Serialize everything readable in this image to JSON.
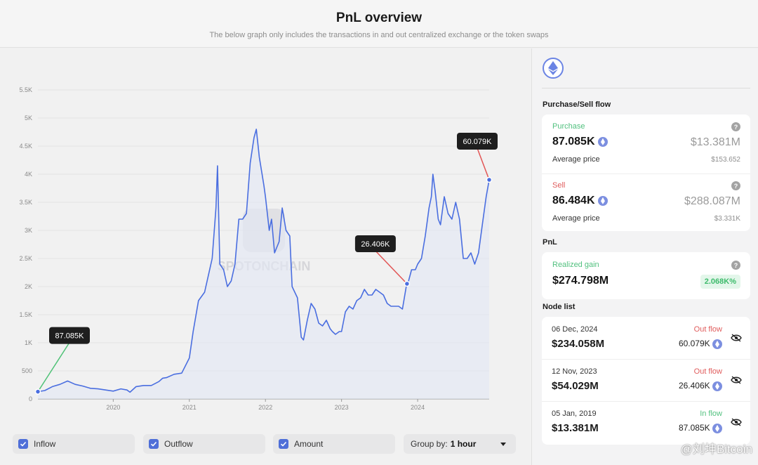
{
  "header": {
    "title": "PnL overview",
    "subtitle": "The below graph only includes the transactions in and out centralized exchange or the token swaps"
  },
  "chart_data": {
    "type": "line",
    "y_ticks": [
      "0",
      "500",
      "1K",
      "1.5K",
      "2K",
      "2.5K",
      "3K",
      "3.5K",
      "4K",
      "4.5K",
      "5K",
      "5.5K"
    ],
    "x_ticks": [
      "2020",
      "2021",
      "2022",
      "2023",
      "2024"
    ],
    "ylim": [
      0,
      5500
    ],
    "xlim": [
      2019.01,
      2024.94
    ],
    "watermark": "SPOTONCHAIN",
    "series": [
      {
        "color": "#4a6ee0",
        "points": [
          [
            2019.01,
            130
          ],
          [
            2019.1,
            150
          ],
          [
            2019.2,
            220
          ],
          [
            2019.3,
            260
          ],
          [
            2019.4,
            320
          ],
          [
            2019.5,
            260
          ],
          [
            2019.6,
            230
          ],
          [
            2019.7,
            190
          ],
          [
            2019.8,
            180
          ],
          [
            2019.9,
            160
          ],
          [
            2020.0,
            140
          ],
          [
            2020.1,
            180
          ],
          [
            2020.18,
            160
          ],
          [
            2020.22,
            120
          ],
          [
            2020.3,
            220
          ],
          [
            2020.4,
            240
          ],
          [
            2020.5,
            240
          ],
          [
            2020.6,
            310
          ],
          [
            2020.65,
            370
          ],
          [
            2020.7,
            380
          ],
          [
            2020.8,
            440
          ],
          [
            2020.9,
            460
          ],
          [
            2021.0,
            730
          ],
          [
            2021.05,
            1200
          ],
          [
            2021.12,
            1750
          ],
          [
            2021.2,
            1900
          ],
          [
            2021.3,
            2500
          ],
          [
            2021.35,
            3400
          ],
          [
            2021.37,
            4150
          ],
          [
            2021.4,
            2400
          ],
          [
            2021.45,
            2300
          ],
          [
            2021.5,
            2000
          ],
          [
            2021.55,
            2100
          ],
          [
            2021.6,
            2400
          ],
          [
            2021.65,
            3200
          ],
          [
            2021.7,
            3200
          ],
          [
            2021.75,
            3300
          ],
          [
            2021.8,
            4200
          ],
          [
            2021.85,
            4650
          ],
          [
            2021.88,
            4800
          ],
          [
            2021.92,
            4300
          ],
          [
            2021.98,
            3800
          ],
          [
            2022.0,
            3600
          ],
          [
            2022.05,
            3000
          ],
          [
            2022.08,
            3200
          ],
          [
            2022.12,
            2600
          ],
          [
            2022.18,
            2800
          ],
          [
            2022.22,
            3400
          ],
          [
            2022.27,
            3000
          ],
          [
            2022.32,
            2900
          ],
          [
            2022.35,
            2000
          ],
          [
            2022.42,
            1800
          ],
          [
            2022.47,
            1100
          ],
          [
            2022.5,
            1050
          ],
          [
            2022.55,
            1400
          ],
          [
            2022.6,
            1700
          ],
          [
            2022.65,
            1600
          ],
          [
            2022.7,
            1350
          ],
          [
            2022.75,
            1300
          ],
          [
            2022.8,
            1400
          ],
          [
            2022.85,
            1250
          ],
          [
            2022.88,
            1200
          ],
          [
            2022.92,
            1150
          ],
          [
            2022.97,
            1200
          ],
          [
            2023.0,
            1200
          ],
          [
            2023.05,
            1550
          ],
          [
            2023.1,
            1650
          ],
          [
            2023.15,
            1600
          ],
          [
            2023.2,
            1750
          ],
          [
            2023.25,
            1800
          ],
          [
            2023.3,
            1950
          ],
          [
            2023.35,
            1850
          ],
          [
            2023.4,
            1850
          ],
          [
            2023.45,
            1950
          ],
          [
            2023.5,
            1900
          ],
          [
            2023.55,
            1850
          ],
          [
            2023.6,
            1700
          ],
          [
            2023.65,
            1650
          ],
          [
            2023.7,
            1650
          ],
          [
            2023.75,
            1650
          ],
          [
            2023.8,
            1600
          ],
          [
            2023.85,
            2000
          ],
          [
            2023.88,
            2100
          ],
          [
            2023.92,
            2300
          ],
          [
            2023.97,
            2300
          ],
          [
            2024.0,
            2400
          ],
          [
            2024.05,
            2500
          ],
          [
            2024.1,
            2900
          ],
          [
            2024.15,
            3400
          ],
          [
            2024.18,
            3600
          ],
          [
            2024.2,
            4000
          ],
          [
            2024.23,
            3700
          ],
          [
            2024.27,
            3200
          ],
          [
            2024.3,
            3100
          ],
          [
            2024.35,
            3600
          ],
          [
            2024.4,
            3300
          ],
          [
            2024.45,
            3200
          ],
          [
            2024.5,
            3500
          ],
          [
            2024.55,
            3200
          ],
          [
            2024.6,
            2500
          ],
          [
            2024.65,
            2500
          ],
          [
            2024.7,
            2600
          ],
          [
            2024.75,
            2400
          ],
          [
            2024.8,
            2600
          ],
          [
            2024.85,
            3100
          ],
          [
            2024.9,
            3600
          ],
          [
            2024.94,
            3900
          ]
        ]
      }
    ],
    "annotations": [
      {
        "label": "87.085K",
        "x": 2019.01,
        "y": 130,
        "color": "#4fc277"
      },
      {
        "label": "26.406K",
        "x": 2023.86,
        "y": 2050,
        "color": "#e25555"
      },
      {
        "label": "60.079K",
        "x": 2024.94,
        "y": 3900,
        "color": "#e25555"
      }
    ],
    "legend": [
      "Inflow",
      "Outflow",
      "Amount"
    ],
    "group_by_label": "Group by:",
    "group_by_value": "1 hour"
  },
  "side": {
    "purchase_sell_title": "Purchase/Sell flow",
    "purchase": {
      "label": "Purchase",
      "amount": "87.085K",
      "usd": "$13.381M",
      "avg_label": "Average price",
      "avg_value": "$153.652"
    },
    "sell": {
      "label": "Sell",
      "amount": "86.484K",
      "usd": "$288.087M",
      "avg_label": "Average price",
      "avg_value": "$3.331K"
    },
    "pnl_title": "PnL",
    "realized": {
      "label": "Realized gain",
      "value": "$274.798M",
      "pct": "2.068K%"
    },
    "node_list_title": "Node list",
    "nodes": [
      {
        "date": "06 Dec, 2024",
        "usd": "$234.058M",
        "flow": "Out flow",
        "amount": "60.079K"
      },
      {
        "date": "12 Nov, 2023",
        "usd": "$54.029M",
        "flow": "Out flow",
        "amount": "26.406K"
      },
      {
        "date": "05 Jan, 2019",
        "usd": "$13.381M",
        "flow": "In flow",
        "amount": "87.085K"
      }
    ]
  },
  "watermark_text": "@刘坤Bitcoin",
  "colors": {
    "line": "#4a6ee0",
    "inflow_green": "#52c17f",
    "outflow_red": "#e05c5c",
    "checkbox": "#4f6fd8"
  }
}
